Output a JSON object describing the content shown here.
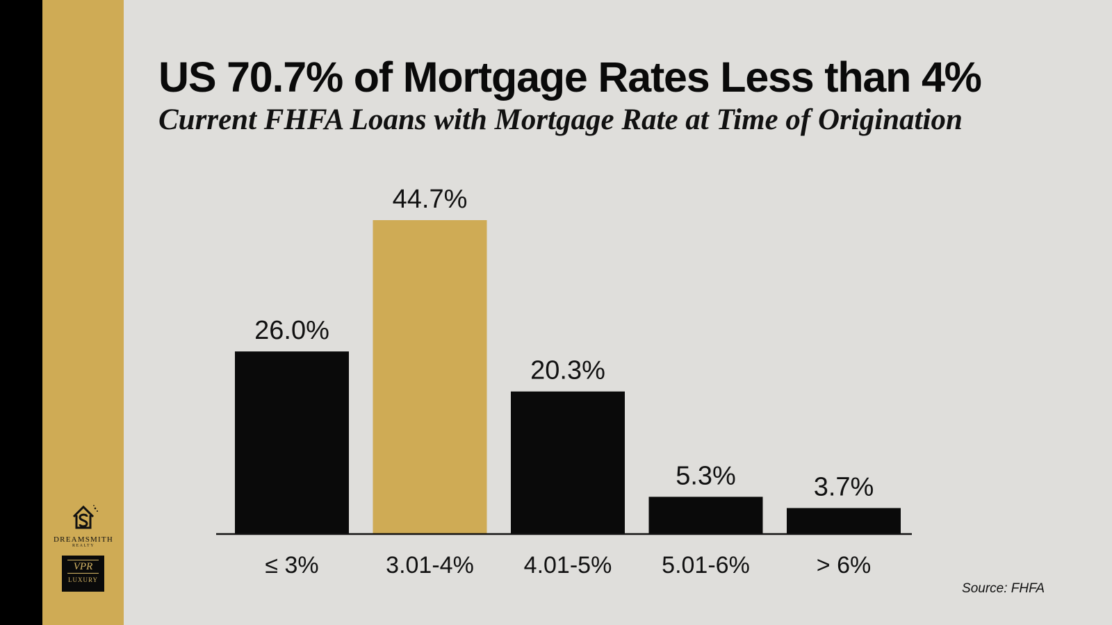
{
  "title": "US 70.7% of Mortgage Rates Less than 4%",
  "subtitle": "Current FHFA Loans with Mortgage Rate at Time of Origination",
  "source": "Source: FHFA",
  "colors": {
    "background": "#dfdedb",
    "gold": "#cfab55",
    "black": "#0a0a0a"
  },
  "logos": {
    "dreamsmith_name": "DREAMSMITH",
    "dreamsmith_sub": "REALTY",
    "vpr_mark": "VPR",
    "vpr_sub": "LUXURY"
  },
  "chart_data": {
    "type": "bar",
    "categories": [
      "≤ 3%",
      "3.01-4%",
      "4.01-5%",
      "5.01-6%",
      "> 6%"
    ],
    "values": [
      26.0,
      44.7,
      20.3,
      5.3,
      3.7
    ],
    "data_labels": [
      "26.0%",
      "44.7%",
      "20.3%",
      "5.3%",
      "3.7%"
    ],
    "bar_colors": [
      "#0a0a0a",
      "#cfab55",
      "#0a0a0a",
      "#0a0a0a",
      "#0a0a0a"
    ],
    "highlighted_category": "3.01-4%",
    "ylim": [
      0,
      44.7
    ],
    "grid": false,
    "legend": "none"
  }
}
